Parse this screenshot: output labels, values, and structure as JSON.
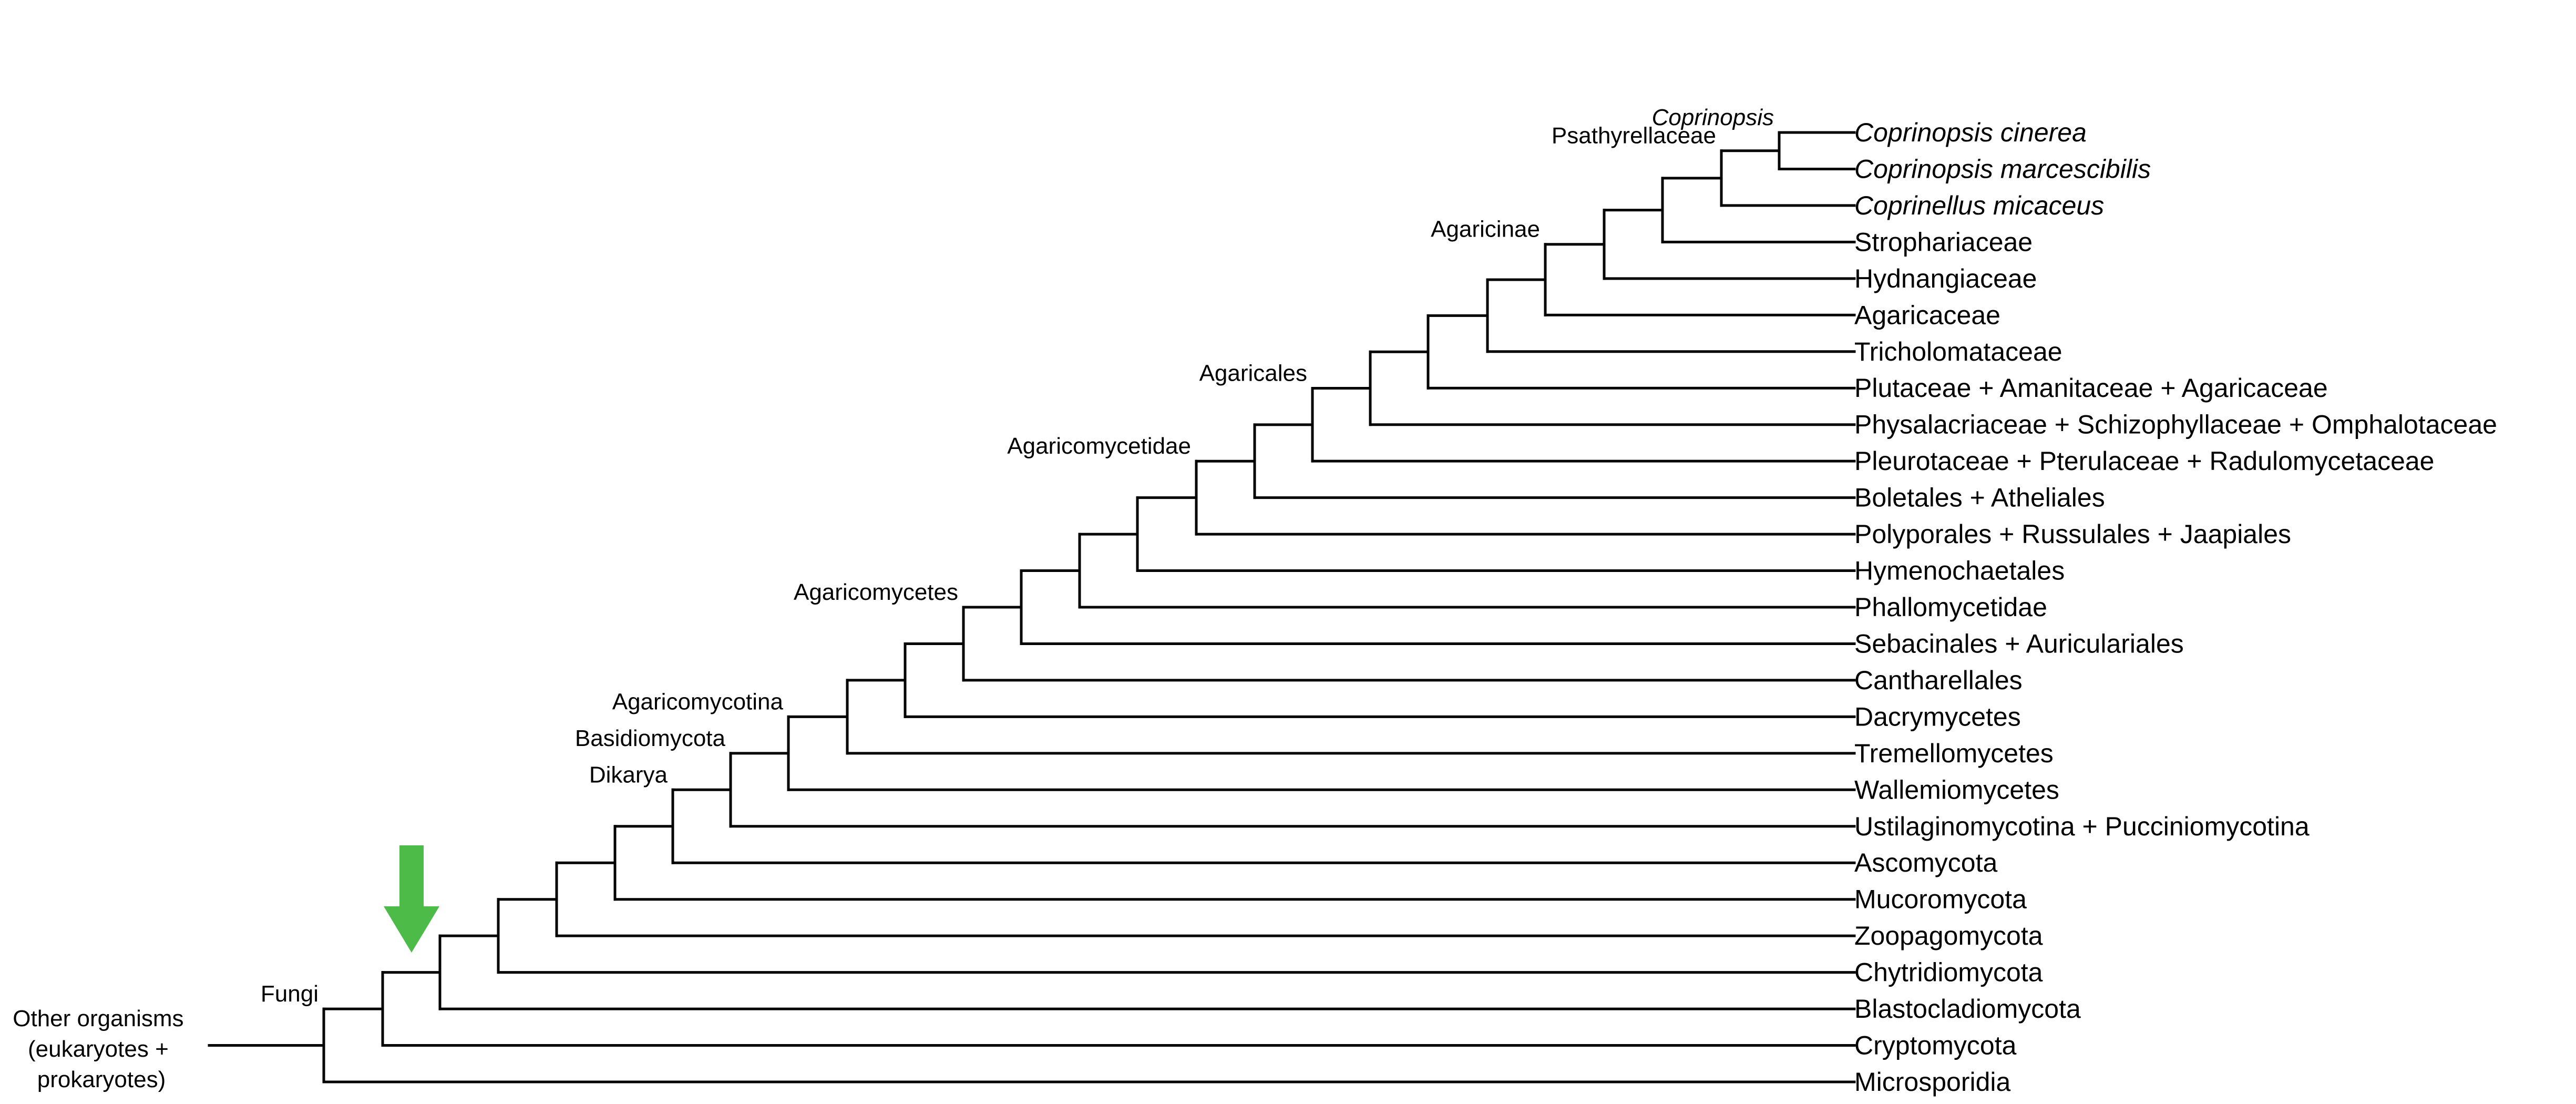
{
  "marker_color": "#4cbb47",
  "root": {
    "label_lines": [
      "Other organisms",
      "(eukaryotes +",
      "prokaryotes)"
    ]
  },
  "leaves": [
    {
      "name": "Coprinopsis cinerea",
      "italic": true
    },
    {
      "name": "Coprinopsis marcescibilis",
      "italic": true
    },
    {
      "name": "Coprinellus micaceus",
      "italic": true
    },
    {
      "name": "Strophariaceae",
      "italic": false
    },
    {
      "name": "Hydnangiaceae",
      "italic": false
    },
    {
      "name": "Agaricaceae",
      "italic": false
    },
    {
      "name": "Tricholomataceae",
      "italic": false
    },
    {
      "name": "Plutaceae + Amanitaceae + Agaricaceae",
      "italic": false
    },
    {
      "name": "Physalacriaceae + Schizophyllaceae + Omphalotaceae",
      "italic": false
    },
    {
      "name": "Pleurotaceae + Pterulaceae + Radulomycetaceae",
      "italic": false
    },
    {
      "name": "Boletales + Atheliales",
      "italic": false
    },
    {
      "name": "Polyporales + Russulales + Jaapiales",
      "italic": false
    },
    {
      "name": "Hymenochaetales",
      "italic": false
    },
    {
      "name": "Phallomycetidae",
      "italic": false
    },
    {
      "name": "Sebacinales + Auriculariales",
      "italic": false
    },
    {
      "name": "Cantharellales",
      "italic": false
    },
    {
      "name": "Dacrymycetes",
      "italic": false
    },
    {
      "name": "Tremellomycetes",
      "italic": false
    },
    {
      "name": "Wallemiomycetes",
      "italic": false
    },
    {
      "name": "Ustilaginomycotina + Pucciniomycotina",
      "italic": false
    },
    {
      "name": "Ascomycota",
      "italic": false
    },
    {
      "name": "Mucoromycota",
      "italic": false
    },
    {
      "name": "Zoopagomycota",
      "italic": false
    },
    {
      "name": "Chytridiomycota",
      "italic": false
    },
    {
      "name": "Blastocladiomycota",
      "italic": false
    },
    {
      "name": "Cryptomycota",
      "italic": false
    },
    {
      "name": "Microsporidia",
      "italic": false
    }
  ],
  "clade_labels": [
    {
      "name": "Coprinopsis",
      "italic": true,
      "node": 0
    },
    {
      "name": "Psathyrellaceae",
      "italic": false,
      "node": 1
    },
    {
      "name": "Agaricinae",
      "italic": false,
      "node": 4
    },
    {
      "name": "Agaricales",
      "italic": false,
      "node": 8
    },
    {
      "name": "Agaricomycetidae",
      "italic": false,
      "node": 10
    },
    {
      "name": "Agaricomycetes",
      "italic": false,
      "node": 14
    },
    {
      "name": "Agaricomycotina",
      "italic": false,
      "node": 17
    },
    {
      "name": "Basidiomycota",
      "italic": false,
      "node": 18
    },
    {
      "name": "Dikarya",
      "italic": false,
      "node": 19
    },
    {
      "name": "Fungi",
      "italic": false,
      "node": 25
    }
  ]
}
